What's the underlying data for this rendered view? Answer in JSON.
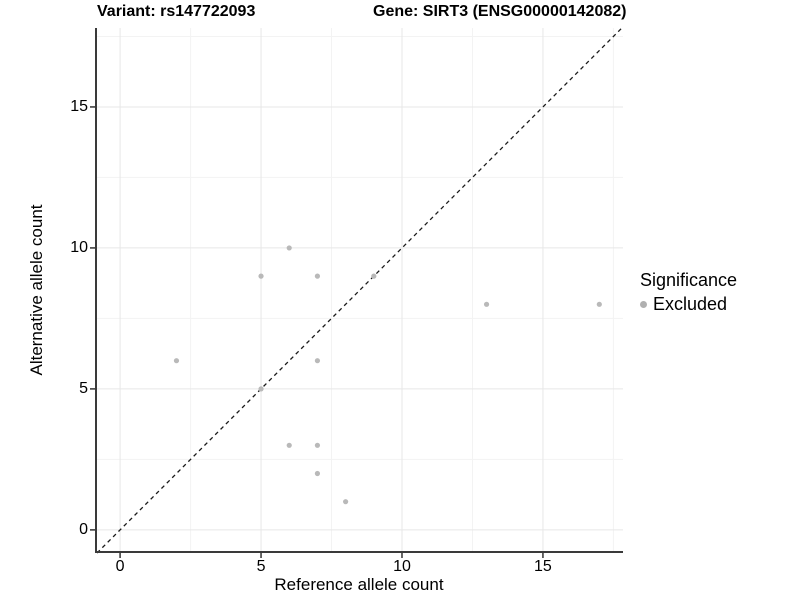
{
  "header": {
    "variant_title": "Variant: rs147722093",
    "gene_title": "Gene: SIRT3 (ENSG00000142082)"
  },
  "chart_data": {
    "type": "scatter",
    "xlabel": "Reference allele count",
    "ylabel": "Alternative allele count",
    "xlim": [
      -0.89,
      17.84
    ],
    "ylim": [
      -0.82,
      17.8
    ],
    "x_ticks": [
      0,
      5,
      10,
      15
    ],
    "y_ticks": [
      0,
      5,
      10,
      15
    ],
    "x_minor_ticks": [
      2.5,
      7.5,
      12.5,
      17.5
    ],
    "y_minor_ticks": [
      2.5,
      7.5,
      12.5,
      17.5
    ],
    "grid": "major and minor, light gray on white",
    "series": [
      {
        "name": "Excluded",
        "color": "#b9b9b9",
        "points": [
          [
            2,
            6
          ],
          [
            5,
            5
          ],
          [
            5,
            9
          ],
          [
            6,
            3
          ],
          [
            6,
            10
          ],
          [
            7,
            2
          ],
          [
            7,
            3
          ],
          [
            7,
            6
          ],
          [
            7,
            9
          ],
          [
            8,
            1
          ],
          [
            9,
            9
          ],
          [
            13,
            8
          ],
          [
            17,
            8
          ]
        ]
      }
    ],
    "identity_line": {
      "slope": 1,
      "intercept": 0,
      "style": "dashed",
      "color": "#1a1a1a"
    },
    "legend": {
      "position": "right",
      "title": "Significance",
      "entries": [
        {
          "label": "Excluded",
          "color": "#b0b0b0"
        }
      ]
    },
    "colors": {
      "background": "#ffffff",
      "grid_major": "#e7e7e7",
      "grid_minor": "#f3f3f3",
      "axis_line": "#3a3a3a",
      "tick_mark": "#333333",
      "point": "#b9b9b9",
      "identity_line": "#1a1a1a"
    }
  }
}
